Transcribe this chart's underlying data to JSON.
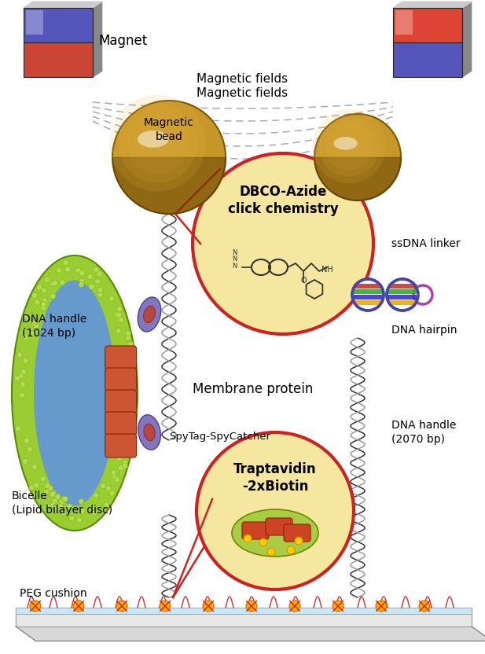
{
  "background_color": "#ffffff",
  "magnet_label": "Magnet",
  "magnetic_fields_label": "Magnetic fields",
  "bead_label": "Magnetic\nbead",
  "dna_handle_left_label": "DNA handle\n(1024 bp)",
  "dna_handle_right_label": "DNA handle\n(2070 bp)",
  "ssdna_label": "ssDNA linker",
  "dbco_label": "DBCO-Azide\nclick chemistry",
  "trap_label": "Traptavidin\n-2xBiotin",
  "membrane_protein_label": "Membrane protein",
  "spytag_label": "SpyTag-SpyCatcher",
  "bicelle_label": "Bicelle\n(Lipid bilayer disc)",
  "peg_label": "PEG cushion",
  "dna_hairpin_label": "DNA hairpin",
  "magnet_left_color_top": "#5555bb",
  "magnet_left_color_bot": "#cc4433",
  "magnet_right_color_top": "#dd4433",
  "magnet_right_color_bot": "#5555bb",
  "bead_color": "#c8972a",
  "dbco_fill": "#f5e6a0",
  "dbco_edge": "#cc2222",
  "trap_fill": "#f5e6a0",
  "trap_edge": "#cc2222",
  "bicelle_outer_color": "#9acd32",
  "bicelle_inner_color": "#6699cc"
}
